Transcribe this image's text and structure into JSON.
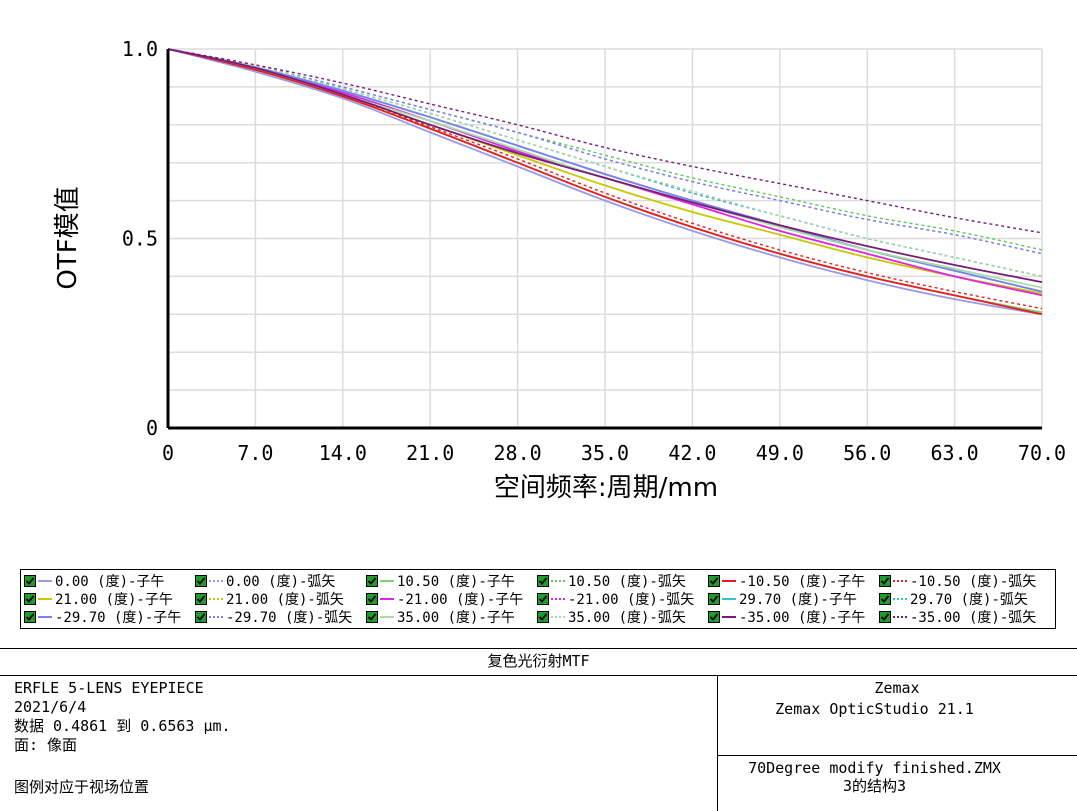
{
  "chart_data": {
    "type": "line",
    "title": "",
    "xlabel": "空间频率:周期/mm",
    "ylabel": "OTF模值",
    "xlim": [
      0,
      70
    ],
    "ylim": [
      0,
      1
    ],
    "xticks": [
      "0",
      "7.0",
      "14.0",
      "21.0",
      "28.0",
      "35.0",
      "42.0",
      "49.0",
      "56.0",
      "63.0",
      "70.0"
    ],
    "yticks": [
      "0",
      "0.5",
      "1.0"
    ],
    "x": [
      0,
      7,
      14,
      21,
      28,
      35,
      42,
      49,
      56,
      63,
      70
    ],
    "grid": true,
    "series": [
      {
        "name": "0.00 (度)-子午",
        "color": "#9a9ae8",
        "dash": false,
        "values": [
          1.0,
          0.94,
          0.87,
          0.78,
          0.69,
          0.6,
          0.52,
          0.45,
          0.39,
          0.34,
          0.3
        ]
      },
      {
        "name": "0.00 (度)-弧矢",
        "color": "#9a9ae8",
        "dash": true,
        "values": [
          1.0,
          0.955,
          0.9,
          0.84,
          0.78,
          0.71,
          0.65,
          0.6,
          0.55,
          0.51,
          0.46
        ]
      },
      {
        "name": "10.50 (度)-子午",
        "color": "#7fd07f",
        "dash": false,
        "values": [
          1.0,
          0.945,
          0.875,
          0.79,
          0.7,
          0.61,
          0.53,
          0.46,
          0.4,
          0.35,
          0.305
        ]
      },
      {
        "name": "10.50 (度)-弧矢",
        "color": "#5ac85a",
        "dash": true,
        "values": [
          1.0,
          0.955,
          0.9,
          0.84,
          0.78,
          0.72,
          0.66,
          0.61,
          0.56,
          0.52,
          0.47
        ]
      },
      {
        "name": "-10.50 (度)-子午",
        "color": "#e81d1d",
        "dash": false,
        "values": [
          1.0,
          0.945,
          0.875,
          0.79,
          0.7,
          0.61,
          0.53,
          0.46,
          0.4,
          0.35,
          0.3
        ]
      },
      {
        "name": "-10.50 (度)-弧矢",
        "color": "#e81d1d",
        "dash": true,
        "values": [
          1.0,
          0.945,
          0.88,
          0.795,
          0.71,
          0.62,
          0.54,
          0.47,
          0.41,
          0.36,
          0.315
        ]
      },
      {
        "name": "21.00 (度)-子午",
        "color": "#c8c800",
        "dash": false,
        "values": [
          1.0,
          0.95,
          0.88,
          0.8,
          0.72,
          0.64,
          0.57,
          0.51,
          0.45,
          0.4,
          0.355
        ]
      },
      {
        "name": "21.00 (度)-弧矢",
        "color": "#c8c800",
        "dash": true,
        "values": [
          1.0,
          0.955,
          0.895,
          0.83,
          0.76,
          0.69,
          0.62,
          0.56,
          0.5,
          0.45,
          0.4
        ]
      },
      {
        "name": "-21.00 (度)-子午",
        "color": "#e023e0",
        "dash": false,
        "values": [
          1.0,
          0.95,
          0.885,
          0.81,
          0.73,
          0.66,
          0.59,
          0.52,
          0.46,
          0.4,
          0.35
        ]
      },
      {
        "name": "-21.00 (度)-弧矢",
        "color": "#e023e0",
        "dash": true,
        "values": [
          1.0,
          0.955,
          0.895,
          0.83,
          0.76,
          0.69,
          0.62,
          0.56,
          0.5,
          0.45,
          0.4
        ]
      },
      {
        "name": "29.70 (度)-子午",
        "color": "#2ec8c8",
        "dash": false,
        "values": [
          1.0,
          0.952,
          0.89,
          0.82,
          0.745,
          0.67,
          0.6,
          0.535,
          0.47,
          0.415,
          0.36
        ]
      },
      {
        "name": "29.70 (度)-弧矢",
        "color": "#2ec8c8",
        "dash": true,
        "values": [
          1.0,
          0.955,
          0.895,
          0.83,
          0.76,
          0.69,
          0.62,
          0.56,
          0.5,
          0.45,
          0.4
        ]
      },
      {
        "name": "-29.70 (度)-子午",
        "color": "#7f7ff0",
        "dash": false,
        "values": [
          1.0,
          0.952,
          0.89,
          0.82,
          0.745,
          0.67,
          0.6,
          0.535,
          0.47,
          0.415,
          0.36
        ]
      },
      {
        "name": "-29.70 (度)-弧矢",
        "color": "#7f7ff0",
        "dash": true,
        "values": [
          1.0,
          0.955,
          0.9,
          0.84,
          0.78,
          0.71,
          0.65,
          0.6,
          0.55,
          0.51,
          0.46
        ]
      },
      {
        "name": "35.00 (度)-子午",
        "color": "#a8dca8",
        "dash": false,
        "values": [
          1.0,
          0.95,
          0.88,
          0.81,
          0.735,
          0.66,
          0.595,
          0.53,
          0.47,
          0.42,
          0.37
        ]
      },
      {
        "name": "35.00 (度)-弧矢",
        "color": "#a8dca8",
        "dash": true,
        "values": [
          1.0,
          0.955,
          0.895,
          0.83,
          0.76,
          0.69,
          0.625,
          0.56,
          0.5,
          0.45,
          0.4
        ]
      },
      {
        "name": "-35.00 (度)-子午",
        "color": "#7a1a7a",
        "dash": false,
        "values": [
          1.0,
          0.95,
          0.88,
          0.8,
          0.725,
          0.66,
          0.595,
          0.535,
          0.48,
          0.43,
          0.385
        ]
      },
      {
        "name": "-35.00 (度)-弧矢",
        "color": "#7a1a7a",
        "dash": true,
        "values": [
          1.0,
          0.958,
          0.91,
          0.855,
          0.8,
          0.74,
          0.69,
          0.645,
          0.6,
          0.555,
          0.515
        ]
      }
    ]
  },
  "info": {
    "title": "复色光衍射MTF",
    "lens_name": "ERFLE 5-LENS EYEPIECE",
    "date": "2021/6/4",
    "data_range": "数据 0.4861 到 0.6563 µm.",
    "surface": "面: 像面",
    "legend_note": "图例对应于视场位置",
    "company": "Zemax",
    "software": "Zemax OpticStudio 21.1",
    "file_name": "70Degree modify finished.ZMX",
    "configuration": "3的结构3"
  }
}
